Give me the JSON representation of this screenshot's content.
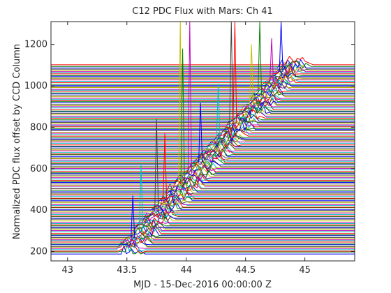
{
  "chart_data": {
    "type": "line",
    "title": "C12 PDC Flux with Mars: Ch 41",
    "xlabel": "MJD - 15-Dec-2016 00:00:00 Z",
    "ylabel": "Normalized PDC flux offset by CCD Column",
    "xlim": [
      42.86,
      45.42
    ],
    "ylim": [
      155,
      1310
    ],
    "xticks": [
      43,
      43.5,
      44,
      44.5,
      45
    ],
    "xtick_labels": [
      "43",
      "43.5",
      "44",
      "44.5",
      "45"
    ],
    "yticks": [
      200,
      400,
      600,
      800,
      1000,
      1200
    ],
    "ytick_labels": [
      "200",
      "400",
      "600",
      "800",
      "1000",
      "1200"
    ],
    "grid": false,
    "legend": "none",
    "colors": [
      "#0000ff",
      "#008000",
      "#ff0000",
      "#00bfbf",
      "#bf00bf",
      "#bfbf00",
      "#404040"
    ],
    "series_pattern": {
      "baseline_offset_range": [
        190,
        1100
      ],
      "transit_start_mjd_range": [
        43.43,
        44.85
      ],
      "notes_visible": false
    },
    "spikes": [
      {
        "x": 43.55,
        "peak": 470
      },
      {
        "x": 43.62,
        "peak": 620
      },
      {
        "x": 43.75,
        "peak": 840
      },
      {
        "x": 43.82,
        "peak": 770
      },
      {
        "x": 43.95,
        "peak": 1310
      },
      {
        "x": 43.97,
        "peak": 1180
      },
      {
        "x": 44.03,
        "peak": 1310
      },
      {
        "x": 44.12,
        "peak": 920
      },
      {
        "x": 44.27,
        "peak": 1010
      },
      {
        "x": 44.38,
        "peak": 1310
      },
      {
        "x": 44.41,
        "peak": 1310
      },
      {
        "x": 44.55,
        "peak": 1200
      },
      {
        "x": 44.62,
        "peak": 1310
      },
      {
        "x": 44.72,
        "peak": 1230
      },
      {
        "x": 44.8,
        "peak": 1310
      }
    ]
  }
}
